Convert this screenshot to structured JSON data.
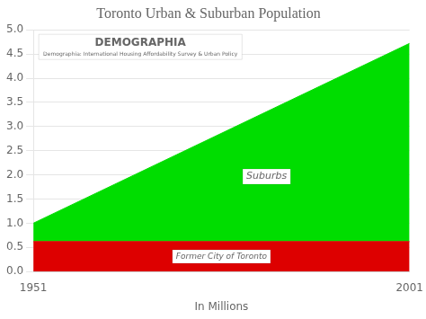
{
  "chart_data": {
    "type": "area",
    "title": "Toronto Urban & Suburban Population",
    "x": [
      1951,
      2001
    ],
    "series": [
      {
        "name": "Former City of Toronto",
        "color": "#dd0000",
        "values": [
          0.62,
          0.62
        ]
      },
      {
        "name": "Suburbs",
        "color": "#00dd00",
        "values": [
          1.0,
          4.72
        ]
      }
    ],
    "x_label": "In Millions",
    "xlim": [
      1951,
      2001
    ],
    "xticks": [
      1951,
      2001
    ],
    "ylim": [
      0.0,
      5.0
    ],
    "yticks": [
      {
        "value": 0,
        "label": "0.0"
      },
      0.5,
      {
        "value": 1,
        "label": "1.0"
      },
      1.5,
      {
        "value": 2,
        "label": "2.0"
      },
      2.5,
      {
        "value": 3,
        "label": "3.0"
      },
      3.5,
      {
        "value": 4,
        "label": "4.0"
      },
      4.5,
      {
        "value": 5,
        "label": "5.0"
      }
    ],
    "grid": "y",
    "annotations": [
      {
        "text": "DEMOGRAPHIA"
      },
      {
        "text": "Demographia: International Housing Affordability Survey & Urban Policy"
      }
    ]
  }
}
